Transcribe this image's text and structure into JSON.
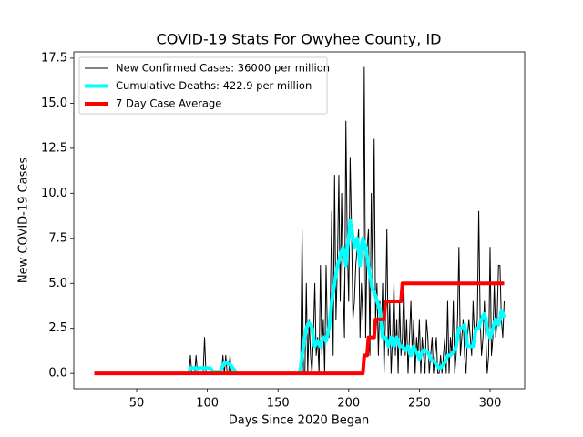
{
  "chart_data": {
    "type": "line",
    "title": "COVID-19 Stats For Owyhee County, ID",
    "x_label": "Days Since 2020 Began",
    "y_label": "New COVID-19 Cases",
    "xlim": [
      5.5,
      324.5
    ],
    "ylim": [
      -0.85,
      17.85
    ],
    "xticks": [
      50,
      100,
      150,
      200,
      250,
      300
    ],
    "yticks": [
      {
        "value": 0,
        "label": "0.0"
      },
      2.5,
      {
        "value": 5,
        "label": "5.0"
      },
      7.5,
      {
        "value": 10,
        "label": "10.0"
      },
      12.5,
      {
        "value": 15,
        "label": "15.0"
      },
      17.5
    ],
    "legend": "upper left",
    "x": [
      20,
      21,
      22,
      23,
      24,
      25,
      26,
      27,
      28,
      29,
      30,
      31,
      32,
      33,
      34,
      35,
      36,
      37,
      38,
      39,
      40,
      41,
      42,
      43,
      44,
      45,
      46,
      47,
      48,
      49,
      50,
      51,
      52,
      53,
      54,
      55,
      56,
      57,
      58,
      59,
      60,
      61,
      62,
      63,
      64,
      65,
      66,
      67,
      68,
      69,
      70,
      71,
      72,
      73,
      74,
      75,
      76,
      77,
      78,
      79,
      80,
      81,
      82,
      83,
      84,
      85,
      86,
      87,
      88,
      89,
      90,
      91,
      92,
      93,
      94,
      95,
      96,
      97,
      98,
      99,
      100,
      101,
      102,
      103,
      104,
      105,
      106,
      107,
      108,
      109,
      110,
      111,
      112,
      113,
      114,
      115,
      116,
      117,
      118,
      119,
      120,
      121,
      122,
      123,
      124,
      125,
      126,
      127,
      128,
      129,
      130,
      131,
      132,
      133,
      134,
      135,
      136,
      137,
      138,
      139,
      140,
      141,
      142,
      143,
      144,
      145,
      146,
      147,
      148,
      149,
      150,
      151,
      152,
      153,
      154,
      155,
      156,
      157,
      158,
      159,
      160,
      161,
      162,
      163,
      164,
      165,
      166,
      167,
      168,
      169,
      170,
      171,
      172,
      173,
      174,
      175,
      176,
      177,
      178,
      179,
      180,
      181,
      182,
      183,
      184,
      185,
      186,
      187,
      188,
      189,
      190,
      191,
      192,
      193,
      194,
      195,
      196,
      197,
      198,
      199,
      200,
      201,
      202,
      203,
      204,
      205,
      206,
      207,
      208,
      209,
      210,
      211,
      212,
      213,
      214,
      215,
      216,
      217,
      218,
      219,
      220,
      221,
      222,
      223,
      224,
      225,
      226,
      227,
      228,
      229,
      230,
      231,
      232,
      233,
      234,
      235,
      236,
      237,
      238,
      239,
      240,
      241,
      242,
      243,
      244,
      245,
      246,
      247,
      248,
      249,
      250,
      251,
      252,
      253,
      254,
      255,
      256,
      257,
      258,
      259,
      260,
      261,
      262,
      263,
      264,
      265,
      266,
      267,
      268,
      269,
      270,
      271,
      272,
      273,
      274,
      275,
      276,
      277,
      278,
      279,
      280,
      281,
      282,
      283,
      284,
      285,
      286,
      287,
      288,
      289,
      290,
      291,
      292,
      293,
      294,
      295,
      296,
      297,
      298,
      299,
      300,
      301,
      302,
      303,
      304,
      305,
      306,
      307,
      308,
      309,
      310
    ],
    "series": [
      {
        "name": "New Confirmed Cases: 36000 per million",
        "color": "#000000",
        "width": 1,
        "values": [
          0,
          0,
          0,
          0,
          0,
          0,
          0,
          0,
          0,
          0,
          0,
          0,
          0,
          0,
          0,
          0,
          0,
          0,
          0,
          0,
          0,
          0,
          0,
          0,
          0,
          0,
          0,
          0,
          0,
          0,
          0,
          0,
          0,
          0,
          0,
          0,
          0,
          0,
          0,
          0,
          0,
          0,
          0,
          0,
          0,
          0,
          0,
          0,
          0,
          0,
          0,
          0,
          0,
          0,
          0,
          0,
          0,
          0,
          0,
          0,
          0,
          0,
          0,
          0,
          0,
          0,
          0,
          0,
          1,
          0,
          0,
          0,
          1,
          0,
          0,
          0,
          0,
          0,
          2,
          0,
          0,
          0,
          0,
          0,
          0,
          0,
          0,
          0,
          0,
          0,
          0,
          1,
          0,
          1,
          0,
          0,
          1,
          0,
          0,
          0,
          0,
          0,
          0,
          0,
          0,
          0,
          0,
          0,
          0,
          0,
          0,
          0,
          0,
          0,
          0,
          0,
          0,
          0,
          0,
          0,
          0,
          0,
          0,
          0,
          0,
          0,
          0,
          0,
          0,
          0,
          0,
          0,
          0,
          0,
          0,
          0,
          0,
          0,
          0,
          0,
          0,
          0,
          0,
          0,
          0,
          0,
          0,
          8,
          0,
          0,
          5,
          0,
          3,
          1,
          0,
          2,
          5,
          1,
          2,
          0,
          6,
          1,
          3,
          0,
          6,
          2,
          2,
          4,
          9,
          1,
          11,
          3,
          6,
          11,
          4,
          10,
          5,
          2,
          14,
          7,
          4,
          12,
          8,
          3,
          4,
          6,
          7,
          8,
          2,
          5,
          3,
          17,
          2,
          7,
          8,
          1,
          10,
          5,
          13,
          3,
          5,
          1,
          4,
          2,
          5,
          0,
          3,
          8,
          1,
          4,
          0,
          2,
          5,
          1,
          3,
          0,
          4,
          1,
          2,
          5,
          1,
          3,
          0,
          2,
          4,
          1,
          3,
          0,
          2,
          1,
          3,
          0,
          2,
          1,
          0,
          3,
          2,
          0,
          1,
          2,
          0,
          1,
          2,
          0,
          0,
          1,
          0,
          1,
          2,
          0,
          4,
          0,
          2,
          1,
          4,
          0,
          1,
          3,
          7,
          1,
          2,
          3,
          1,
          0,
          2,
          3,
          2,
          1,
          4,
          2,
          2,
          3,
          9,
          3,
          1,
          2,
          4,
          2,
          0,
          1,
          7,
          1,
          2,
          5,
          2,
          3,
          6,
          6,
          3,
          2,
          4
        ]
      },
      {
        "name": "Cumulative Deaths: 422.9 per million",
        "color": "#00ffff",
        "width": 4,
        "values": [
          null,
          null,
          null,
          null,
          null,
          null,
          null,
          null,
          null,
          null,
          null,
          null,
          null,
          null,
          null,
          null,
          null,
          null,
          null,
          null,
          null,
          null,
          null,
          null,
          null,
          null,
          null,
          null,
          null,
          null,
          null,
          null,
          null,
          null,
          null,
          null,
          null,
          null,
          null,
          null,
          null,
          null,
          null,
          null,
          null,
          null,
          null,
          null,
          null,
          null,
          null,
          null,
          null,
          null,
          null,
          null,
          null,
          null,
          null,
          null,
          null,
          null,
          null,
          null,
          null,
          null,
          null,
          0.1,
          0.3,
          0.3,
          0.3,
          0.3,
          0.3,
          0.2,
          0.3,
          0.3,
          0.3,
          0.3,
          0.3,
          0.3,
          0.3,
          0.3,
          0.3,
          0.2,
          0.1,
          0.1,
          0.1,
          0.1,
          0.1,
          0.1,
          0.3,
          0.4,
          0.6,
          0.6,
          0.6,
          0.5,
          0.5,
          0.4,
          0.3,
          0.2,
          0.1,
          0,
          null,
          null,
          null,
          null,
          null,
          null,
          null,
          null,
          null,
          null,
          null,
          null,
          null,
          null,
          null,
          null,
          null,
          null,
          null,
          null,
          null,
          null,
          null,
          null,
          null,
          null,
          null,
          null,
          null,
          null,
          null,
          null,
          null,
          null,
          null,
          null,
          null,
          null,
          null,
          null,
          null,
          null,
          null,
          0,
          0.3,
          1,
          1.5,
          2,
          2.5,
          2.7,
          2.8,
          2.7,
          2.5,
          2,
          1.5,
          1.7,
          1.8,
          1.6,
          1.5,
          1.8,
          2,
          1.9,
          1.8,
          2.2,
          2.5,
          3.2,
          4,
          4.5,
          5,
          5.5,
          6,
          6.2,
          6.5,
          6.8,
          7,
          6.5,
          6,
          7,
          7.5,
          8.5,
          8,
          7.5,
          7,
          7.2,
          7.5,
          6.8,
          6,
          7,
          7.5,
          7.2,
          7,
          6.5,
          6,
          5.5,
          5,
          4.7,
          4.5,
          4.3,
          4,
          3.8,
          3.5,
          2.8,
          2,
          2,
          2,
          1.8,
          1.5,
          1.8,
          2,
          1.8,
          1.5,
          1.8,
          2,
          1.8,
          1.5,
          1.5,
          1.5,
          1.4,
          1.3,
          1.4,
          1.5,
          1.2,
          1,
          1.3,
          1.5,
          1.3,
          1.2,
          1,
          0.8,
          1,
          1.2,
          1.3,
          1.3,
          1.2,
          1.2,
          1,
          0.8,
          0.7,
          0.7,
          0.6,
          0.5,
          0.4,
          0.3,
          0.3,
          0.4,
          0.5,
          0.6,
          0.8,
          1,
          1,
          1,
          1.1,
          1.2,
          1.3,
          1.5,
          2,
          2.5,
          2.5,
          2.5,
          2.6,
          2.7,
          2.2,
          1.5,
          1.5,
          1.5,
          1.5,
          1.5,
          2,
          2.5,
          2.5,
          2.5,
          2.8,
          3,
          3.2,
          3.3,
          3,
          2.5,
          2.2,
          2,
          2.2,
          2.5,
          2.8,
          3,
          2.8,
          2.7,
          3,
          3.5,
          3.3,
          3.1
        ]
      },
      {
        "name": "7 Day Case Average",
        "color": "#ff0000",
        "width": 4,
        "values": [
          0,
          0,
          0,
          0,
          0,
          0,
          0,
          0,
          0,
          0,
          0,
          0,
          0,
          0,
          0,
          0,
          0,
          0,
          0,
          0,
          0,
          0,
          0,
          0,
          0,
          0,
          0,
          0,
          0,
          0,
          0,
          0,
          0,
          0,
          0,
          0,
          0,
          0,
          0,
          0,
          0,
          0,
          0,
          0,
          0,
          0,
          0,
          0,
          0,
          0,
          0,
          0,
          0,
          0,
          0,
          0,
          0,
          0,
          0,
          0,
          0,
          0,
          0,
          0,
          0,
          0,
          0,
          0,
          0,
          0,
          0,
          0,
          0,
          0,
          0,
          0,
          0,
          0,
          0,
          0,
          0,
          0,
          0,
          0,
          0,
          0,
          0,
          0,
          0,
          0,
          0,
          0,
          0,
          0,
          0,
          0,
          0,
          0,
          0,
          0,
          0,
          0,
          0,
          0,
          0,
          0,
          0,
          0,
          0,
          0,
          0,
          0,
          0,
          0,
          0,
          0,
          0,
          0,
          0,
          0,
          0,
          0,
          0,
          0,
          0,
          0,
          0,
          0,
          0,
          0,
          0,
          0,
          0,
          0,
          0,
          0,
          0,
          0,
          0,
          0,
          0,
          0,
          0,
          0,
          0,
          0,
          0,
          0,
          0,
          0,
          0,
          0,
          0,
          0,
          0,
          0,
          0,
          0,
          0,
          0,
          0,
          0,
          0,
          0,
          0,
          0,
          0,
          0,
          0,
          0,
          0,
          0,
          0,
          0,
          0,
          0,
          0,
          0,
          0,
          0,
          0,
          0,
          0,
          0,
          0,
          0,
          0,
          0,
          0,
          0,
          0,
          1,
          1,
          1,
          2,
          2,
          2,
          2,
          2,
          3,
          3,
          3,
          3,
          3,
          3,
          3,
          4,
          4,
          4,
          4,
          4,
          4,
          4,
          4,
          4,
          4,
          4,
          4,
          5,
          5,
          5,
          5,
          5,
          5,
          5,
          5,
          5,
          5,
          5,
          5,
          5,
          5,
          5,
          5,
          5,
          5,
          5,
          5,
          5,
          5,
          5,
          5,
          5,
          5,
          5,
          5,
          5,
          5,
          5,
          5,
          5,
          5,
          5,
          5,
          5,
          5,
          5,
          5,
          5,
          5,
          5,
          5,
          5,
          5,
          5,
          5,
          5,
          5,
          5,
          5,
          5,
          5,
          5,
          5,
          5,
          5,
          5,
          5,
          5,
          5,
          5,
          5,
          5,
          5,
          5,
          5,
          5,
          5,
          5,
          5,
          5
        ]
      }
    ]
  }
}
